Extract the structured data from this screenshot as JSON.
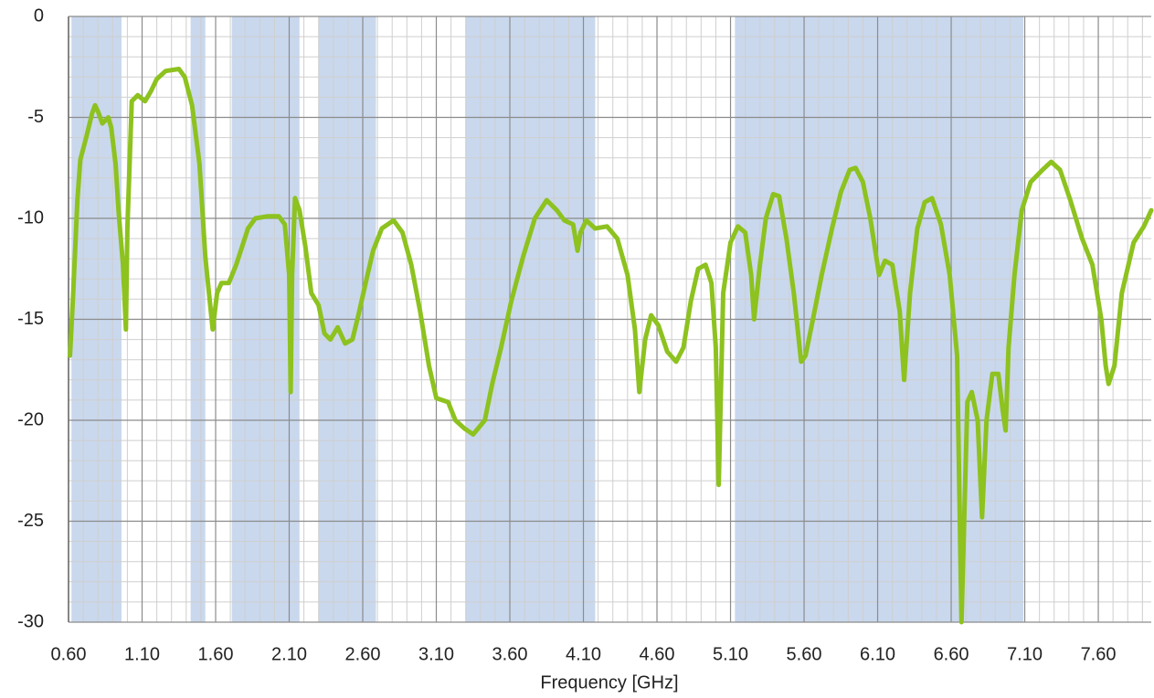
{
  "chart_data": {
    "type": "line",
    "x_label": "Frequency [GHz]",
    "xlim": [
      0.6,
      7.96
    ],
    "ylim": [
      -30,
      0
    ],
    "xticks": [
      {
        "value": 0.6,
        "label": "0.60"
      },
      {
        "value": 1.1,
        "label": "1.10"
      },
      {
        "value": 1.6,
        "label": "1.60"
      },
      {
        "value": 2.1,
        "label": "2.10"
      },
      {
        "value": 2.6,
        "label": "2.60"
      },
      {
        "value": 3.1,
        "label": "3.10"
      },
      {
        "value": 3.6,
        "label": "3.60"
      },
      {
        "value": 4.1,
        "label": "4.10"
      },
      {
        "value": 4.6,
        "label": "4.60"
      },
      {
        "value": 5.1,
        "label": "5.10"
      },
      {
        "value": 5.6,
        "label": "5.60"
      },
      {
        "value": 6.1,
        "label": "6.10"
      },
      {
        "value": 6.6,
        "label": "6.60"
      },
      {
        "value": 7.1,
        "label": "7.10"
      },
      {
        "value": 7.6,
        "label": "7.60"
      }
    ],
    "yticks": [
      0,
      -5,
      -10,
      -15,
      -20,
      -25,
      -30
    ],
    "grid": true,
    "shaded_bands": [
      [
        0.62,
        0.96
      ],
      [
        1.43,
        1.53
      ],
      [
        1.71,
        2.17
      ],
      [
        2.3,
        2.69
      ],
      [
        3.3,
        4.18
      ],
      [
        5.13,
        7.09
      ]
    ],
    "band_color": "#c9d8ed",
    "x": [
      0.61,
      0.63,
      0.66,
      0.68,
      0.72,
      0.76,
      0.78,
      0.8,
      0.83,
      0.87,
      0.89,
      0.92,
      0.94,
      0.97,
      0.99,
      1.0,
      1.03,
      1.07,
      1.12,
      1.16,
      1.2,
      1.26,
      1.35,
      1.39,
      1.44,
      1.49,
      1.53,
      1.56,
      1.58,
      1.61,
      1.64,
      1.69,
      1.74,
      1.78,
      1.82,
      1.87,
      1.95,
      2.03,
      2.07,
      2.1,
      2.11,
      2.12,
      2.14,
      2.17,
      2.21,
      2.25,
      2.3,
      2.34,
      2.38,
      2.43,
      2.48,
      2.53,
      2.57,
      2.62,
      2.67,
      2.73,
      2.81,
      2.87,
      2.93,
      2.99,
      3.05,
      3.1,
      3.18,
      3.23,
      3.29,
      3.35,
      3.43,
      3.48,
      3.54,
      3.61,
      3.69,
      3.77,
      3.85,
      3.92,
      3.97,
      4.03,
      4.06,
      4.08,
      4.12,
      4.18,
      4.26,
      4.33,
      4.4,
      4.45,
      4.48,
      4.52,
      4.56,
      4.61,
      4.67,
      4.73,
      4.78,
      4.83,
      4.88,
      4.93,
      4.97,
      5.0,
      5.02,
      5.05,
      5.1,
      5.15,
      5.2,
      5.24,
      5.26,
      5.3,
      5.34,
      5.39,
      5.43,
      5.48,
      5.53,
      5.58,
      5.61,
      5.66,
      5.72,
      5.79,
      5.85,
      5.91,
      5.95,
      6.0,
      6.05,
      6.11,
      6.15,
      6.2,
      6.25,
      6.28,
      6.32,
      6.37,
      6.42,
      6.47,
      6.53,
      6.59,
      6.64,
      6.67,
      6.71,
      6.74,
      6.78,
      6.81,
      6.84,
      6.88,
      6.92,
      6.95,
      6.97,
      6.99,
      7.03,
      7.08,
      7.14,
      7.22,
      7.28,
      7.34,
      7.41,
      7.49,
      7.56,
      7.62,
      7.65,
      7.67,
      7.71,
      7.76,
      7.84,
      7.91,
      7.96
    ],
    "series": [
      {
        "color": "#8dc21f",
        "values": [
          -16.8,
          -14,
          -9.1,
          -7.1,
          -6,
          -4.8,
          -4.4,
          -4.7,
          -5.3,
          -5,
          -5.5,
          -7.3,
          -9.6,
          -12.3,
          -15.5,
          -10.5,
          -4.2,
          -3.9,
          -4.2,
          -3.7,
          -3.1,
          -2.7,
          -2.6,
          -3,
          -4.4,
          -7.3,
          -11.9,
          -14.1,
          -15.5,
          -13.7,
          -13.2,
          -13.2,
          -12.3,
          -11.4,
          -10.5,
          -10,
          -9.9,
          -9.9,
          -10.3,
          -12.8,
          -18.6,
          -12.8,
          -9,
          -9.6,
          -11.4,
          -13.7,
          -14.3,
          -15.7,
          -16,
          -15.4,
          -16.2,
          -16,
          -14.8,
          -13.2,
          -11.6,
          -10.5,
          -10.1,
          -10.7,
          -12.3,
          -14.6,
          -17.3,
          -18.9,
          -19.1,
          -20,
          -20.4,
          -20.7,
          -20,
          -18.2,
          -16.4,
          -14.1,
          -11.9,
          -10,
          -9.1,
          -9.6,
          -10.1,
          -10.3,
          -11.6,
          -10.7,
          -10.1,
          -10.5,
          -10.4,
          -11,
          -12.8,
          -15.5,
          -18.6,
          -16,
          -14.8,
          -15.3,
          -16.6,
          -17.1,
          -16.4,
          -14.1,
          -12.5,
          -12.3,
          -13.2,
          -16.4,
          -23.2,
          -13.7,
          -11.2,
          -10.4,
          -10.7,
          -12.8,
          -15,
          -12.3,
          -10,
          -8.8,
          -8.9,
          -11,
          -13.7,
          -17.1,
          -16.8,
          -15,
          -12.8,
          -10.5,
          -8.7,
          -7.6,
          -7.5,
          -8.2,
          -10,
          -12.8,
          -12.1,
          -12.3,
          -14.6,
          -18,
          -13.7,
          -10.5,
          -9.2,
          -9,
          -10.3,
          -12.8,
          -16.8,
          -30,
          -19.1,
          -18.6,
          -20,
          -24.8,
          -20,
          -17.7,
          -17.7,
          -19.5,
          -20.5,
          -16.4,
          -12.8,
          -9.6,
          -8.2,
          -7.6,
          -7.2,
          -7.6,
          -9.1,
          -11,
          -12.3,
          -15,
          -17.3,
          -18.2,
          -17.3,
          -13.7,
          -11.2,
          -10.4,
          -9.6
        ]
      }
    ]
  }
}
